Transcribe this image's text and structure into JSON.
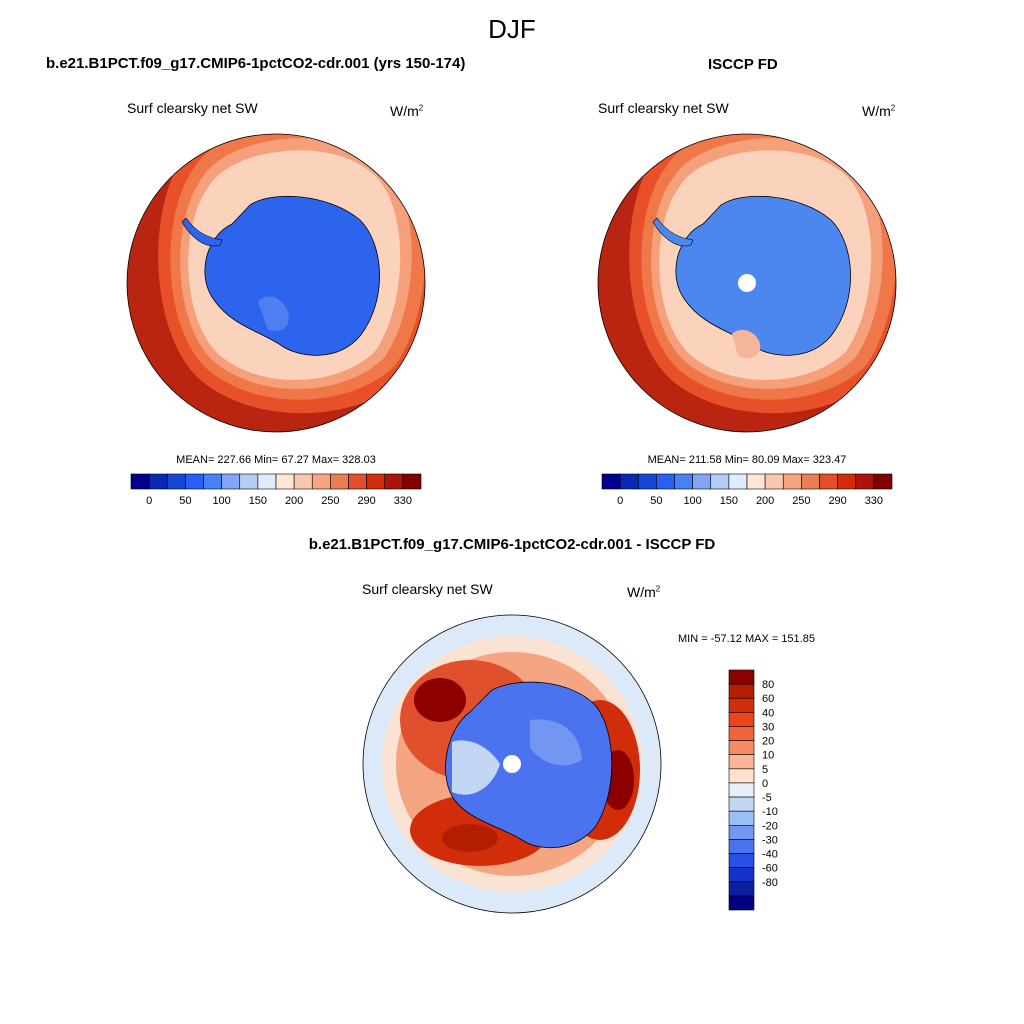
{
  "season": "DJF",
  "panels": [
    {
      "title": "b.e21.B1PCT.f09_g17.CMIP6-1pctCO2-cdr.001 (yrs 150-174)",
      "left_label": "Surf clearsky net SW",
      "units_base": "W/m",
      "units_exp": "2",
      "stats": "MEAN= 227.66  Min=  67.27  Max= 328.03",
      "has_pole_hole": false,
      "ring_levels": [
        320,
        290,
        270,
        250,
        220,
        200,
        180
      ]
    },
    {
      "title": "ISCCP FD",
      "left_label": "Surf clearsky net SW",
      "units_base": "W/m",
      "units_exp": "2",
      "stats": "MEAN= 211.58  Min=  80.09  Max= 323.47",
      "has_pole_hole": true,
      "ring_levels": [
        320,
        290,
        270,
        250,
        220,
        200,
        180
      ]
    }
  ],
  "colorbar_abs": {
    "colors": [
      "#00008c",
      "#0a28b4",
      "#1446d2",
      "#285ff5",
      "#4682f5",
      "#82a5f5",
      "#b4cdf5",
      "#e1ebff",
      "#ffe6d7",
      "#fac8af",
      "#f5a582",
      "#eb7d55",
      "#e1502d",
      "#d22d0a",
      "#aa140a",
      "#820000"
    ],
    "labels": [
      "0",
      "50",
      "100",
      "150",
      "200",
      "250",
      "290",
      "330"
    ]
  },
  "difference": {
    "title": "b.e21.B1PCT.f09_g17.CMIP6-1pctCO2-cdr.001 - ISCCP FD",
    "left_label": "Surf clearsky net SW",
    "units_base": "W/m",
    "units_exp": "2",
    "minmax": "MIN = -57.12 MAX = 151.85",
    "colors": [
      "#8c0000",
      "#b41e00",
      "#d22d0a",
      "#eb4619",
      "#f0643c",
      "#f58c64",
      "#fab496",
      "#ffe1cd",
      "#e6f0fa",
      "#c3d7f5",
      "#9bbef5",
      "#7396f0",
      "#4b73f0",
      "#2850e6",
      "#1432c8",
      "#0a1ea0",
      "#000082"
    ],
    "labels": [
      "80",
      "60",
      "40",
      "30",
      "20",
      "10",
      "5",
      "0",
      "-5",
      "-10",
      "-20",
      "-30",
      "-40",
      "-60",
      "-80"
    ]
  },
  "colors": {
    "land_blue": "#2d64ee",
    "land_blue_obs": "#4b87ef",
    "ocean_dark": "#b92510"
  }
}
